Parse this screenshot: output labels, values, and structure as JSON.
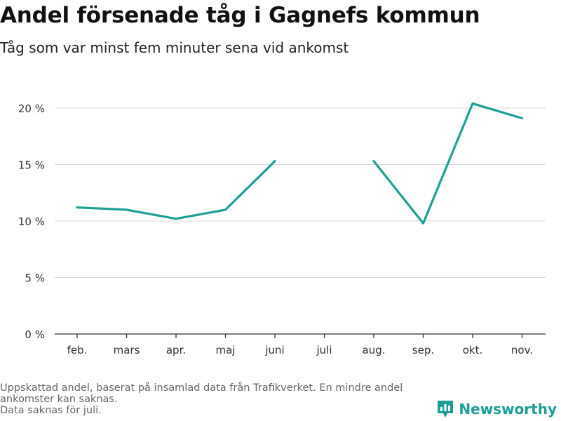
{
  "header": {
    "title": "Andel försenade tåg i Gagnefs kommun",
    "subtitle": "Tåg som var minst fem minuter sena vid ankomst"
  },
  "footnote": {
    "line1": "Uppskattad andel, baserat på insamlad data från Trafikverket. En mindre andel",
    "line2": "ankomster kan saknas.",
    "line3": "Data saknas för juli."
  },
  "brand": {
    "name": "Newsworthy",
    "color": "#1d9e96"
  },
  "chart_data": {
    "type": "line",
    "title": "Andel försenade tåg i Gagnefs kommun",
    "subtitle": "Tåg som var minst fem minuter sena vid ankomst",
    "categories": [
      "feb.",
      "mars",
      "apr.",
      "maj",
      "juni",
      "juli",
      "aug.",
      "sep.",
      "okt.",
      "nov."
    ],
    "series": [
      {
        "values": [
          11.2,
          11.0,
          10.2,
          11.0,
          15.3,
          null,
          15.3,
          9.8,
          20.4,
          19.1
        ],
        "color": "#1d9e96"
      }
    ],
    "yticks": [
      0,
      5,
      10,
      15,
      20
    ],
    "ytick_labels": [
      "0 %",
      "5 %",
      "10 %",
      "15 %",
      "20 %"
    ],
    "ylim": [
      0,
      20
    ],
    "grid": true,
    "xlabel": "",
    "ylabel": ""
  }
}
